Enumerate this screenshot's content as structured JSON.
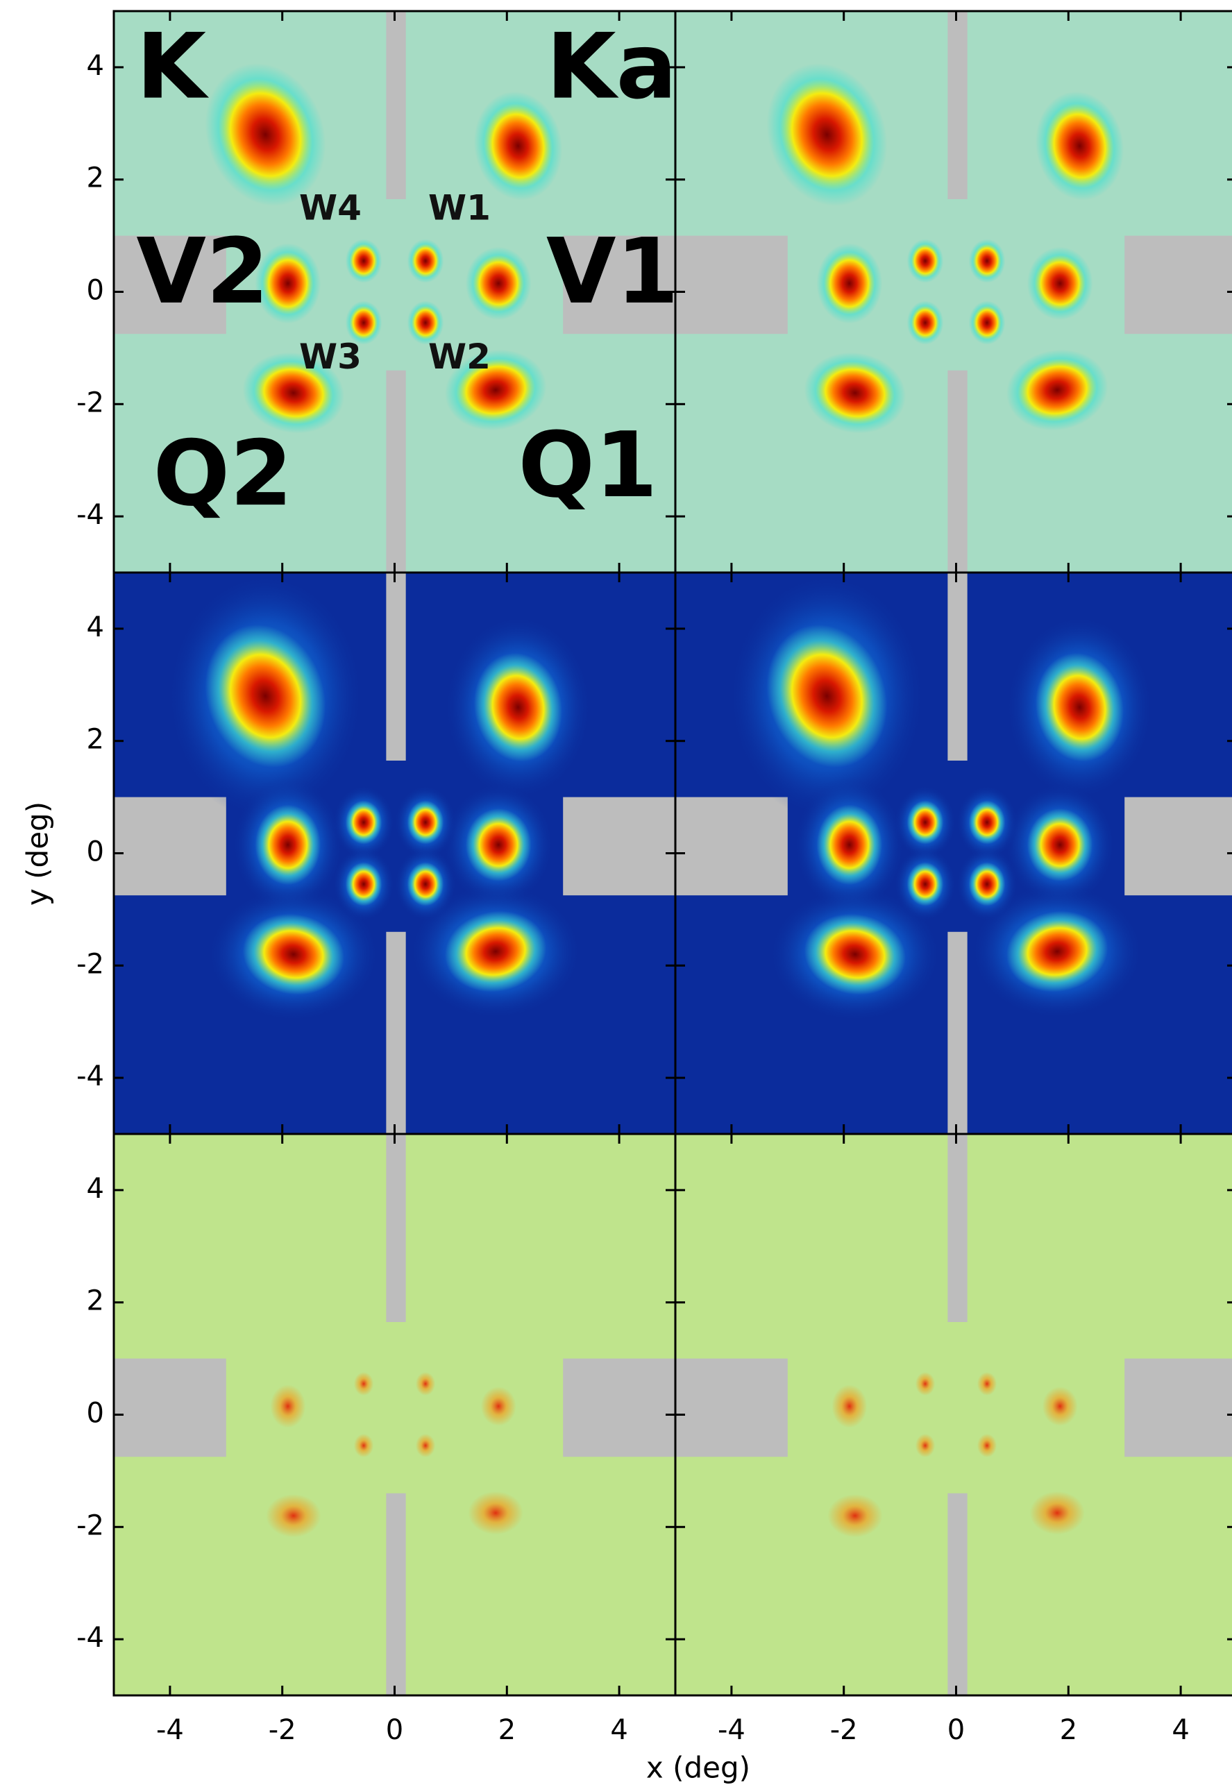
{
  "chart_data": {
    "type": "heatmap",
    "xlabel": "x (deg)",
    "ylabel": "y (deg)",
    "xlim": [
      -5,
      5
    ],
    "ylim": [
      -5,
      5
    ],
    "xticks": [
      -4,
      -2,
      0,
      2,
      4
    ],
    "yticks": [
      -4,
      -2,
      0,
      2,
      4
    ],
    "annotations": [
      "K",
      "Ka",
      "V2",
      "V1",
      "Q2",
      "Q1",
      "W4",
      "W1",
      "W3",
      "W2"
    ]
  }
}
